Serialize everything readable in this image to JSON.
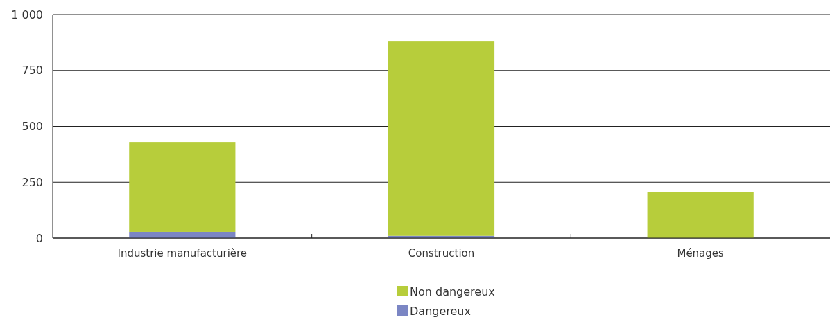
{
  "chart_data": {
    "type": "bar",
    "stacked": true,
    "categories": [
      "Industrie manufacturière",
      "Construction",
      "Ménages"
    ],
    "series": [
      {
        "name": "Dangereux",
        "color": "#7b86c4",
        "values": [
          28,
          10,
          0
        ]
      },
      {
        "name": "Non dangereux",
        "color": "#b7cd3b",
        "values": [
          402,
          872,
          207
        ]
      }
    ],
    "ylim": [
      0,
      1000
    ],
    "yticks": [
      0,
      {
        "value": 250,
        "label": "250"
      },
      {
        "value": 500,
        "label": "500"
      },
      {
        "value": 750,
        "label": "750"
      },
      {
        "value": 1000,
        "label": "1 000"
      }
    ],
    "grid": "y",
    "legend": "bottom"
  }
}
